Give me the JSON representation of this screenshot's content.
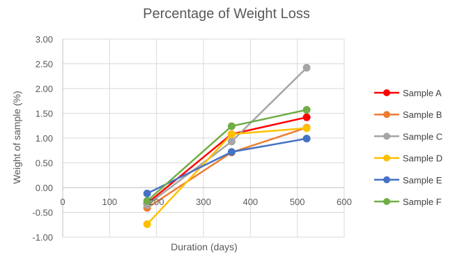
{
  "chart_data": {
    "type": "line",
    "title": "Percentage of Weight Loss",
    "xlabel": "Duration (days)",
    "ylabel": "Weight of sample (%)",
    "xlim": [
      0,
      600
    ],
    "ylim": [
      -1,
      3
    ],
    "x_ticks": [
      "0",
      "100",
      "200",
      "300",
      "400",
      "500",
      "600"
    ],
    "y_ticks": [
      "3.00",
      "2.50",
      "2.00",
      "1.50",
      "1.00",
      "0.50",
      "0.00",
      "-0.50",
      "-1.00"
    ],
    "x": [
      180,
      360,
      520
    ],
    "grid": "on",
    "legend_position": "right",
    "series": [
      {
        "name": "Sample A",
        "color": "#FF0000",
        "values": [
          -0.32,
          1.08,
          1.42
        ]
      },
      {
        "name": "Sample B",
        "color": "#ED7D31",
        "values": [
          -0.41,
          0.71,
          1.21
        ]
      },
      {
        "name": "Sample C",
        "color": "#A5A5A5",
        "values": [
          -0.35,
          0.93,
          2.42
        ]
      },
      {
        "name": "Sample D",
        "color": "#FFC000",
        "values": [
          -0.74,
          1.08,
          1.2
        ]
      },
      {
        "name": "Sample E",
        "color": "#4472C4",
        "values": [
          -0.12,
          0.72,
          0.99
        ]
      },
      {
        "name": "Sample F",
        "color": "#70AD47",
        "values": [
          -0.27,
          1.24,
          1.57
        ]
      }
    ]
  }
}
